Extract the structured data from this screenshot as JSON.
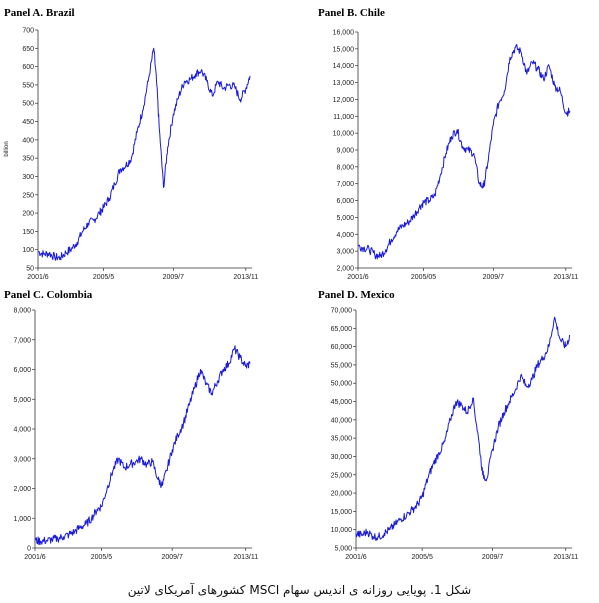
{
  "caption": "شکل 1. پویایی روزانه ی اندیس سهام MSCI کشورهای آمریکای لاتین",
  "colors": {
    "line": "#1a1adb",
    "axis": "#333333",
    "text": "#000000"
  },
  "chart_data": [
    {
      "type": "line",
      "title": "Panel A. Brazil",
      "ylabel": "billion",
      "xlabel": "",
      "x_ticks": [
        "2001/6",
        "2005/5",
        "2009/7",
        "2013/11"
      ],
      "y_ticks": [
        50,
        100,
        150,
        200,
        250,
        300,
        350,
        400,
        450,
        500,
        550,
        600,
        650,
        700
      ],
      "ylim": [
        50,
        700
      ],
      "grid": false,
      "series": [
        {
          "x": [
            "2001/6",
            "2001/10",
            "2002/2",
            "2002/6",
            "2002/10",
            "2003/2",
            "2003/6",
            "2003/10",
            "2004/2",
            "2004/6",
            "2004/10",
            "2005/2",
            "2005/5",
            "2005/9",
            "2006/1",
            "2006/5",
            "2006/9",
            "2007/1",
            "2007/5",
            "2007/9",
            "2008/1",
            "2008/5",
            "2008/7",
            "2008/9",
            "2008/12",
            "2009/3",
            "2009/7",
            "2009/11",
            "2010/3",
            "2010/7",
            "2010/11",
            "2011/3",
            "2011/7",
            "2011/11",
            "2012/3",
            "2012/7",
            "2012/11",
            "2013/3",
            "2013/7",
            "2013/11",
            "2014/2"
          ],
          "values": [
            95,
            88,
            90,
            80,
            78,
            92,
            102,
            120,
            150,
            172,
            180,
            200,
            215,
            240,
            280,
            320,
            330,
            350,
            420,
            480,
            560,
            650,
            560,
            430,
            270,
            380,
            470,
            520,
            560,
            565,
            580,
            590,
            560,
            520,
            560,
            540,
            550,
            545,
            510,
            540,
            575
          ]
        }
      ]
    },
    {
      "type": "line",
      "title": "Panel B. Chile",
      "xlabel": "",
      "ylabel": "",
      "x_ticks": [
        "2001/6",
        "2005/05",
        "2009/7",
        "2013/11"
      ],
      "y_ticks": [
        "2,000",
        "3,000",
        "4,000",
        "5,000",
        "6,000",
        "7,000",
        "8,000",
        "9,000",
        "10,000",
        "11,000",
        "12,000",
        "13,000",
        "14,000",
        "15,000",
        "16,000"
      ],
      "ylim": [
        2000,
        16000
      ],
      "grid": false,
      "series": [
        {
          "x": [
            "2001/6",
            "2001/10",
            "2002/2",
            "2002/6",
            "2002/10",
            "2003/2",
            "2003/6",
            "2003/10",
            "2004/2",
            "2004/6",
            "2004/10",
            "2005/2",
            "2005/5",
            "2005/9",
            "2006/1",
            "2006/5",
            "2006/9",
            "2007/1",
            "2007/5",
            "2007/9",
            "2008/1",
            "2008/5",
            "2008/9",
            "2008/12",
            "2009/3",
            "2009/7",
            "2009/11",
            "2010/3",
            "2010/7",
            "2010/11",
            "2011/3",
            "2011/7",
            "2011/11",
            "2012/3",
            "2012/7",
            "2012/11",
            "2013/3",
            "2013/7",
            "2013/11",
            "2014/2"
          ],
          "values": [
            3300,
            3200,
            3100,
            2800,
            2700,
            3100,
            3700,
            4200,
            4500,
            4700,
            5100,
            5600,
            5900,
            6000,
            6300,
            7500,
            8800,
            9800,
            10200,
            9200,
            9000,
            8800,
            7000,
            6800,
            8200,
            10500,
            11800,
            12500,
            14500,
            15100,
            14800,
            13500,
            14200,
            13800,
            13200,
            14000,
            12800,
            12500,
            11200,
            11300
          ]
        }
      ]
    },
    {
      "type": "line",
      "title": "Panel C. Colombia",
      "xlabel": "",
      "ylabel": "",
      "x_ticks": [
        "2001/6",
        "2005/5",
        "2009/7",
        "2013/11"
      ],
      "y_ticks": [
        "0",
        "1,000",
        "2,000",
        "3,000",
        "4,000",
        "5,000",
        "6,000",
        "7,000",
        "8,000"
      ],
      "ylim": [
        0,
        8000
      ],
      "grid": false,
      "series": [
        {
          "x": [
            "2001/6",
            "2001/10",
            "2002/2",
            "2002/6",
            "2002/10",
            "2003/2",
            "2003/6",
            "2003/10",
            "2004/2",
            "2004/6",
            "2004/10",
            "2005/2",
            "2005/5",
            "2005/9",
            "2006/1",
            "2006/5",
            "2006/9",
            "2007/1",
            "2007/5",
            "2007/9",
            "2008/1",
            "2008/5",
            "2008/9",
            "2008/12",
            "2009/3",
            "2009/7",
            "2009/11",
            "2010/3",
            "2010/7",
            "2010/11",
            "2011/3",
            "2011/7",
            "2011/11",
            "2012/3",
            "2012/7",
            "2012/11",
            "2013/3",
            "2013/7",
            "2013/11",
            "2014/2"
          ],
          "values": [
            250,
            230,
            250,
            280,
            320,
            380,
            450,
            550,
            700,
            800,
            1000,
            1300,
            1400,
            2000,
            2600,
            3000,
            2700,
            2800,
            2900,
            3000,
            2800,
            2900,
            2300,
            2100,
            2600,
            3300,
            3800,
            4200,
            4800,
            5400,
            6000,
            5500,
            5200,
            5600,
            6000,
            6200,
            6700,
            6400,
            6100,
            6200
          ]
        }
      ]
    },
    {
      "type": "line",
      "title": "Panel D. Mexico",
      "xlabel": "",
      "ylabel": "",
      "x_ticks": [
        "2001/6",
        "2005/5",
        "2009/7",
        "2013/11"
      ],
      "y_ticks": [
        "5,000",
        "10,000",
        "15,000",
        "20,000",
        "25,000",
        "30,000",
        "35,000",
        "40,000",
        "45,000",
        "50,000",
        "55,000",
        "60,000",
        "65,000",
        "70,000"
      ],
      "ylim": [
        5000,
        70000
      ],
      "grid": false,
      "series": [
        {
          "x": [
            "2001/6",
            "2001/10",
            "2002/2",
            "2002/6",
            "2002/10",
            "2003/2",
            "2003/6",
            "2003/10",
            "2004/2",
            "2004/6",
            "2004/10",
            "2005/2",
            "2005/5",
            "2005/9",
            "2006/1",
            "2006/5",
            "2006/9",
            "2007/1",
            "2007/5",
            "2007/9",
            "2008/1",
            "2008/5",
            "2008/9",
            "2008/12",
            "2009/3",
            "2009/7",
            "2009/11",
            "2010/3",
            "2010/7",
            "2010/11",
            "2011/3",
            "2011/7",
            "2011/11",
            "2012/3",
            "2012/7",
            "2012/11",
            "2013/3",
            "2013/7",
            "2013/11",
            "2014/2"
          ],
          "values": [
            9000,
            8500,
            9500,
            8200,
            8000,
            9000,
            10000,
            11500,
            13000,
            14000,
            15500,
            17000,
            19000,
            24000,
            28000,
            31000,
            34000,
            40000,
            45000,
            44000,
            42000,
            46000,
            35000,
            25000,
            24000,
            32000,
            38000,
            42000,
            45000,
            48000,
            52000,
            49000,
            51000,
            55000,
            57000,
            60000,
            68000,
            62000,
            60000,
            63000
          ]
        }
      ]
    }
  ]
}
